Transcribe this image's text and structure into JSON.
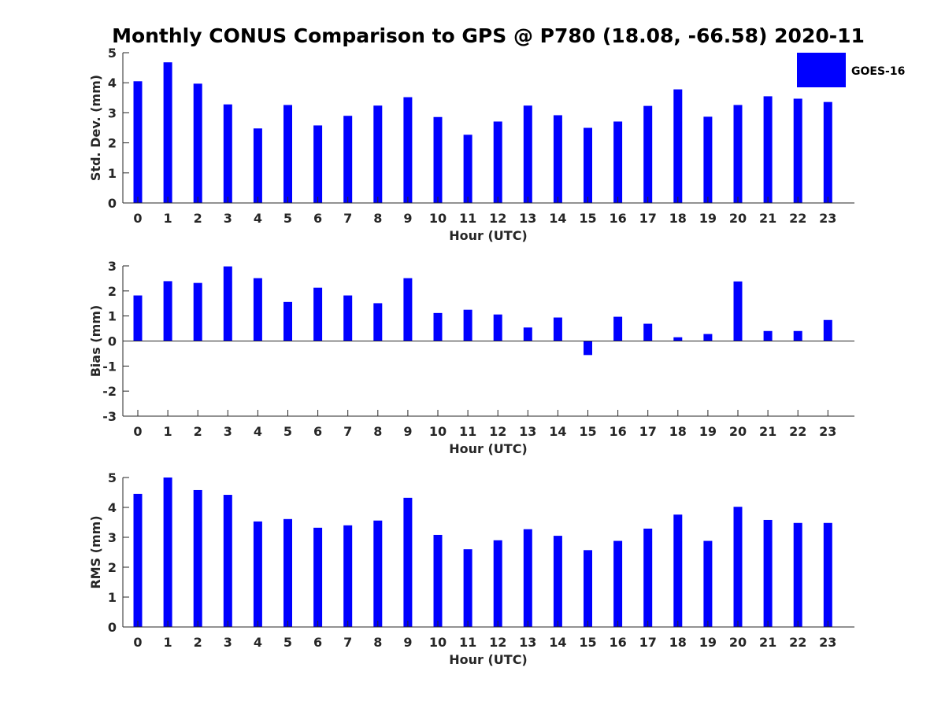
{
  "title": "Monthly CONUS Comparison to GPS @ P780 (18.08, -66.58) 2020-11",
  "colors": {
    "bar": "#0000ff",
    "axis": "#262626",
    "text": "#262626"
  },
  "legend": {
    "label": "GOES-16",
    "placement": "top-right"
  },
  "chart_data": [
    {
      "type": "bar",
      "categories": [
        "0",
        "1",
        "2",
        "3",
        "4",
        "5",
        "6",
        "7",
        "8",
        "9",
        "10",
        "11",
        "12",
        "13",
        "14",
        "15",
        "16",
        "17",
        "18",
        "19",
        "20",
        "21",
        "22",
        "23"
      ],
      "series": [
        {
          "name": "GOES-16",
          "values": [
            4.05,
            4.68,
            3.97,
            3.28,
            2.48,
            3.26,
            2.58,
            2.9,
            3.24,
            3.52,
            2.86,
            2.27,
            2.71,
            3.24,
            2.92,
            2.5,
            2.71,
            3.23,
            3.78,
            2.87,
            3.26,
            3.55,
            3.47,
            3.36
          ]
        }
      ],
      "xlabel": "Hour (UTC)",
      "ylabel": "Std. Dev. (mm)",
      "ylim": [
        0,
        5
      ],
      "yticks": [
        0,
        1,
        2,
        3,
        4,
        5
      ]
    },
    {
      "type": "bar",
      "categories": [
        "0",
        "1",
        "2",
        "3",
        "4",
        "5",
        "6",
        "7",
        "8",
        "9",
        "10",
        "11",
        "12",
        "13",
        "14",
        "15",
        "16",
        "17",
        "18",
        "19",
        "20",
        "21",
        "22",
        "23"
      ],
      "series": [
        {
          "name": "GOES-16",
          "values": [
            1.82,
            2.39,
            2.32,
            2.98,
            2.51,
            1.56,
            2.13,
            1.82,
            1.51,
            2.51,
            1.12,
            1.25,
            1.06,
            0.54,
            0.94,
            -0.56,
            0.97,
            0.69,
            0.15,
            0.28,
            2.38,
            0.4,
            0.4,
            0.84
          ]
        }
      ],
      "xlabel": "Hour (UTC)",
      "ylabel": "Bias (mm)",
      "ylim": [
        -3,
        3
      ],
      "yticks": [
        -3,
        -2,
        -1,
        0,
        1,
        2,
        3
      ]
    },
    {
      "type": "bar",
      "categories": [
        "0",
        "1",
        "2",
        "3",
        "4",
        "5",
        "6",
        "7",
        "8",
        "9",
        "10",
        "11",
        "12",
        "13",
        "14",
        "15",
        "16",
        "17",
        "18",
        "19",
        "20",
        "21",
        "22",
        "23"
      ],
      "series": [
        {
          "name": "GOES-16",
          "values": [
            4.45,
            5.0,
            4.58,
            4.42,
            3.53,
            3.61,
            3.32,
            3.4,
            3.56,
            4.32,
            3.08,
            2.6,
            2.9,
            3.27,
            3.05,
            2.57,
            2.88,
            3.29,
            3.76,
            2.88,
            4.02,
            3.58,
            3.48,
            3.48
          ]
        }
      ],
      "xlabel": "Hour (UTC)",
      "ylabel": "RMS (mm)",
      "ylim": [
        0,
        5
      ],
      "yticks": [
        0,
        1,
        2,
        3,
        4,
        5
      ]
    }
  ]
}
